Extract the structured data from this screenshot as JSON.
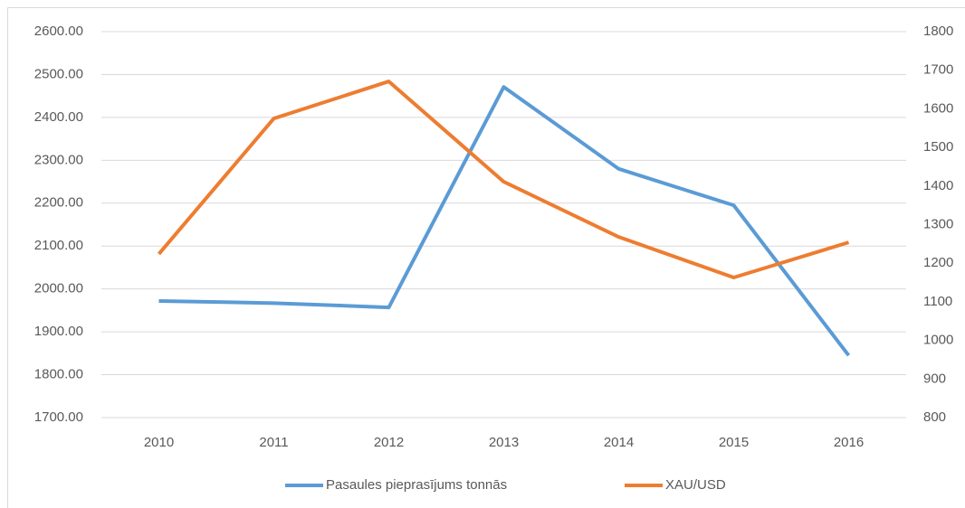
{
  "chart_data": {
    "type": "line",
    "categories": [
      "2010",
      "2011",
      "2012",
      "2013",
      "2014",
      "2015",
      "2016"
    ],
    "series": [
      {
        "name": "Pasaules pieprasījums tonnās",
        "color": "#5b9bd5",
        "values": [
          1972,
          1967,
          1957,
          2471,
          2280,
          2195,
          1845
        ]
      },
      {
        "name": "XAU/USD",
        "color": "#ed7d31",
        "axis": "y2",
        "values": [
          1224,
          1575,
          1671,
          1411,
          1268,
          1163,
          1254
        ]
      }
    ],
    "ylim": [
      1700,
      2600
    ],
    "yticks": [
      {
        "value": 1700,
        "label": "1700.00"
      },
      {
        "value": 1800,
        "label": "1800.00"
      },
      {
        "value": 1900,
        "label": "1900.00"
      },
      {
        "value": 2000,
        "label": "2000.00"
      },
      {
        "value": 2100,
        "label": "2100.00"
      },
      {
        "value": 2200,
        "label": "2200.00"
      },
      {
        "value": 2300,
        "label": "2300.00"
      },
      {
        "value": 2400,
        "label": "2400.00"
      },
      {
        "value": 2500,
        "label": "2500.00"
      },
      {
        "value": 2600,
        "label": "2600.00"
      }
    ],
    "y2lim": [
      800,
      1800
    ],
    "y2ticks": [
      800,
      900,
      1000,
      1100,
      1200,
      1300,
      1400,
      1500,
      1600,
      1700,
      1800
    ],
    "grid": true,
    "legend": "bottom"
  }
}
